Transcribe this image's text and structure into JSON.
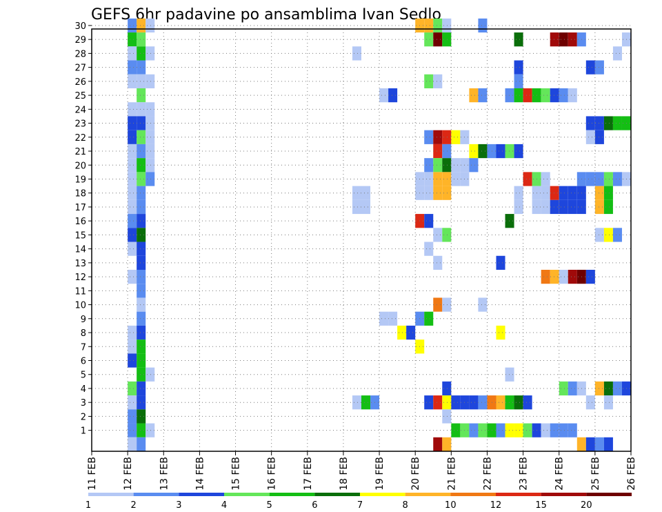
{
  "chart_data": {
    "type": "heatmap",
    "title": "GEFS 6hr padavine po ansamblima Ivan Sedlo",
    "x_tick_labels": [
      "11 FEB",
      "12 FEB",
      "13 FEB",
      "14 FEB",
      "15 FEB",
      "16 FEB",
      "17 FEB",
      "18 FEB",
      "19 FEB",
      "20 FEB",
      "21 FEB",
      "22 FEB",
      "23 FEB",
      "24 FEB",
      "25 FEB",
      "26 FEB"
    ],
    "y_tick_labels": [
      "1",
      "2",
      "3",
      "4",
      "5",
      "6",
      "7",
      "8",
      "9",
      "10",
      "11",
      "12",
      "13",
      "14",
      "15",
      "16",
      "17",
      "18",
      "19",
      "20",
      "21",
      "22",
      "23",
      "24",
      "25",
      "26",
      "27",
      "28",
      "29",
      "30"
    ],
    "xlim_days": [
      11,
      26
    ],
    "ylim_member": [
      0,
      30
    ],
    "grid": true,
    "palette": [
      {
        "level": 1,
        "color": "#b4c8f5"
      },
      {
        "level": 2,
        "color": "#5a8cf0"
      },
      {
        "level": 3,
        "color": "#1e46dc"
      },
      {
        "level": 4,
        "color": "#64e65a"
      },
      {
        "level": 5,
        "color": "#14be14"
      },
      {
        "level": 6,
        "color": "#0a6e0a"
      },
      {
        "level": 7,
        "color": "#ffff00"
      },
      {
        "level": 8,
        "color": "#ffb428"
      },
      {
        "level": 9,
        "color": "#f07814"
      },
      {
        "level": 10,
        "color": "#dc2814"
      },
      {
        "level": 11,
        "color": "#a00a0a"
      },
      {
        "level": 12,
        "color": "#6e0000"
      }
    ],
    "colorbar_labels": [
      {
        "text": "1",
        "level": 0
      },
      {
        "text": "2",
        "level": 1
      },
      {
        "text": "3",
        "level": 2
      },
      {
        "text": "4",
        "level": 3
      },
      {
        "text": "5",
        "level": 4
      },
      {
        "text": "6",
        "level": 5
      },
      {
        "text": "7",
        "level": 6
      },
      {
        "text": "8",
        "level": 7
      },
      {
        "text": "10",
        "level": 8
      },
      {
        "text": "12",
        "level": 9
      },
      {
        "text": "15",
        "level": 10
      },
      {
        "text": "20",
        "level": 11
      }
    ],
    "cell_width_days": 0.25,
    "cells": [
      [
        30,
        12.0,
        2
      ],
      [
        30,
        12.25,
        8
      ],
      [
        30,
        12.5,
        1
      ],
      [
        30,
        20.0,
        8
      ],
      [
        30,
        20.25,
        8
      ],
      [
        30,
        20.5,
        4
      ],
      [
        30,
        20.75,
        1
      ],
      [
        30,
        21.75,
        2
      ],
      [
        29,
        12.0,
        5
      ],
      [
        29,
        12.25,
        4
      ],
      [
        29,
        20.25,
        4
      ],
      [
        29,
        20.5,
        12
      ],
      [
        29,
        20.75,
        5
      ],
      [
        29,
        22.75,
        6
      ],
      [
        29,
        23.75,
        11
      ],
      [
        29,
        24.0,
        12
      ],
      [
        29,
        24.25,
        11
      ],
      [
        29,
        24.5,
        2
      ],
      [
        29,
        25.75,
        1
      ],
      [
        28,
        12.0,
        1
      ],
      [
        28,
        12.25,
        5
      ],
      [
        28,
        12.5,
        1
      ],
      [
        28,
        18.25,
        1
      ],
      [
        28,
        25.5,
        1
      ],
      [
        27,
        12.0,
        2
      ],
      [
        27,
        12.25,
        2
      ],
      [
        27,
        22.75,
        3
      ],
      [
        27,
        24.75,
        3
      ],
      [
        27,
        25.0,
        2
      ],
      [
        26,
        12.0,
        1
      ],
      [
        26,
        12.25,
        1
      ],
      [
        26,
        12.5,
        1
      ],
      [
        26,
        20.25,
        4
      ],
      [
        26,
        20.5,
        1
      ],
      [
        26,
        22.75,
        2
      ],
      [
        25,
        12.25,
        4
      ],
      [
        25,
        19.0,
        1
      ],
      [
        25,
        19.25,
        3
      ],
      [
        25,
        21.5,
        8
      ],
      [
        25,
        21.75,
        2
      ],
      [
        25,
        22.5,
        2
      ],
      [
        25,
        22.75,
        5
      ],
      [
        25,
        23.0,
        10
      ],
      [
        25,
        23.25,
        5
      ],
      [
        25,
        23.5,
        4
      ],
      [
        25,
        23.75,
        3
      ],
      [
        25,
        24.0,
        2
      ],
      [
        25,
        24.25,
        1
      ],
      [
        24,
        12.0,
        1
      ],
      [
        24,
        12.25,
        1
      ],
      [
        24,
        12.5,
        1
      ],
      [
        24,
        26.0,
        3
      ],
      [
        23,
        12.0,
        3
      ],
      [
        23,
        12.25,
        3
      ],
      [
        23,
        12.5,
        1
      ],
      [
        23,
        24.75,
        3
      ],
      [
        23,
        25.0,
        3
      ],
      [
        23,
        25.25,
        6
      ],
      [
        23,
        25.5,
        5
      ],
      [
        23,
        25.75,
        5
      ],
      [
        22,
        12.0,
        3
      ],
      [
        22,
        12.25,
        4
      ],
      [
        22,
        12.5,
        1
      ],
      [
        22,
        20.25,
        2
      ],
      [
        22,
        20.5,
        11
      ],
      [
        22,
        20.75,
        10
      ],
      [
        22,
        21.0,
        7
      ],
      [
        22,
        21.25,
        1
      ],
      [
        22,
        24.75,
        1
      ],
      [
        22,
        25.0,
        3
      ],
      [
        21,
        12.0,
        1
      ],
      [
        21,
        12.25,
        2
      ],
      [
        21,
        12.5,
        1
      ],
      [
        21,
        20.5,
        10
      ],
      [
        21,
        20.75,
        2
      ],
      [
        21,
        21.5,
        7
      ],
      [
        21,
        21.75,
        6
      ],
      [
        21,
        22.0,
        2
      ],
      [
        21,
        22.25,
        3
      ],
      [
        21,
        22.5,
        4
      ],
      [
        21,
        22.75,
        3
      ],
      [
        20,
        12.0,
        1
      ],
      [
        20,
        12.25,
        5
      ],
      [
        20,
        12.5,
        1
      ],
      [
        20,
        20.25,
        2
      ],
      [
        20,
        20.5,
        4
      ],
      [
        20,
        20.75,
        6
      ],
      [
        20,
        21.0,
        1
      ],
      [
        20,
        21.25,
        1
      ],
      [
        20,
        21.5,
        2
      ],
      [
        19,
        12.0,
        1
      ],
      [
        19,
        12.25,
        4
      ],
      [
        19,
        12.5,
        2
      ],
      [
        19,
        20.0,
        1
      ],
      [
        19,
        20.25,
        1
      ],
      [
        19,
        20.5,
        8
      ],
      [
        19,
        20.75,
        8
      ],
      [
        19,
        21.0,
        1
      ],
      [
        19,
        21.25,
        1
      ],
      [
        19,
        23.0,
        10
      ],
      [
        19,
        23.25,
        4
      ],
      [
        19,
        23.5,
        1
      ],
      [
        19,
        24.5,
        2
      ],
      [
        19,
        24.75,
        2
      ],
      [
        19,
        25.0,
        2
      ],
      [
        19,
        25.25,
        4
      ],
      [
        19,
        25.5,
        2
      ],
      [
        19,
        25.75,
        1
      ],
      [
        18,
        12.0,
        1
      ],
      [
        18,
        12.25,
        2
      ],
      [
        18,
        18.25,
        1
      ],
      [
        18,
        18.5,
        1
      ],
      [
        18,
        20.0,
        1
      ],
      [
        18,
        20.25,
        1
      ],
      [
        18,
        20.5,
        8
      ],
      [
        18,
        20.75,
        8
      ],
      [
        18,
        22.75,
        1
      ],
      [
        18,
        23.25,
        1
      ],
      [
        18,
        23.5,
        1
      ],
      [
        18,
        23.75,
        10
      ],
      [
        18,
        24.0,
        3
      ],
      [
        18,
        24.25,
        3
      ],
      [
        18,
        24.5,
        3
      ],
      [
        18,
        25.0,
        8
      ],
      [
        18,
        25.25,
        5
      ],
      [
        17,
        12.0,
        1
      ],
      [
        17,
        12.25,
        2
      ],
      [
        17,
        18.25,
        1
      ],
      [
        17,
        18.5,
        1
      ],
      [
        17,
        22.75,
        1
      ],
      [
        17,
        23.25,
        1
      ],
      [
        17,
        23.5,
        1
      ],
      [
        17,
        23.75,
        3
      ],
      [
        17,
        24.0,
        3
      ],
      [
        17,
        24.25,
        3
      ],
      [
        17,
        24.5,
        3
      ],
      [
        17,
        25.0,
        8
      ],
      [
        17,
        25.25,
        5
      ],
      [
        16,
        12.0,
        2
      ],
      [
        16,
        12.25,
        3
      ],
      [
        16,
        20.0,
        10
      ],
      [
        16,
        20.25,
        3
      ],
      [
        16,
        22.5,
        6
      ],
      [
        15,
        12.0,
        3
      ],
      [
        15,
        12.25,
        6
      ],
      [
        15,
        20.5,
        1
      ],
      [
        15,
        20.75,
        4
      ],
      [
        15,
        25.0,
        1
      ],
      [
        15,
        25.25,
        7
      ],
      [
        15,
        25.5,
        2
      ],
      [
        14,
        12.0,
        1
      ],
      [
        14,
        12.25,
        3
      ],
      [
        14,
        20.25,
        1
      ],
      [
        13,
        12.25,
        3
      ],
      [
        13,
        20.5,
        1
      ],
      [
        13,
        22.25,
        3
      ],
      [
        12,
        12.0,
        1
      ],
      [
        12,
        12.25,
        2
      ],
      [
        12,
        23.5,
        9
      ],
      [
        12,
        23.75,
        8
      ],
      [
        12,
        24.0,
        1
      ],
      [
        12,
        24.25,
        11
      ],
      [
        12,
        24.5,
        12
      ],
      [
        12,
        24.75,
        3
      ],
      [
        12,
        26.0,
        3
      ],
      [
        11,
        12.25,
        2
      ],
      [
        10,
        12.25,
        1
      ],
      [
        10,
        20.5,
        9
      ],
      [
        10,
        20.75,
        1
      ],
      [
        10,
        21.75,
        1
      ],
      [
        9,
        12.25,
        2
      ],
      [
        9,
        19.0,
        1
      ],
      [
        9,
        19.25,
        1
      ],
      [
        9,
        20.0,
        2
      ],
      [
        9,
        20.25,
        5
      ],
      [
        8,
        12.0,
        1
      ],
      [
        8,
        12.25,
        3
      ],
      [
        8,
        19.5,
        7
      ],
      [
        8,
        19.75,
        3
      ],
      [
        8,
        22.25,
        7
      ],
      [
        7,
        12.0,
        1
      ],
      [
        7,
        12.25,
        5
      ],
      [
        7,
        20.0,
        7
      ],
      [
        6,
        12.0,
        3
      ],
      [
        6,
        12.25,
        5
      ],
      [
        5,
        12.25,
        5
      ],
      [
        5,
        12.5,
        1
      ],
      [
        5,
        22.5,
        1
      ],
      [
        4,
        12.0,
        4
      ],
      [
        4,
        12.25,
        3
      ],
      [
        4,
        20.75,
        3
      ],
      [
        4,
        24.0,
        4
      ],
      [
        4,
        24.25,
        2
      ],
      [
        4,
        24.5,
        1
      ],
      [
        4,
        25.0,
        8
      ],
      [
        4,
        25.25,
        6
      ],
      [
        4,
        25.5,
        2
      ],
      [
        4,
        25.75,
        3
      ],
      [
        3,
        12.0,
        1
      ],
      [
        3,
        12.25,
        3
      ],
      [
        3,
        18.25,
        1
      ],
      [
        3,
        18.5,
        5
      ],
      [
        3,
        18.75,
        2
      ],
      [
        3,
        20.25,
        3
      ],
      [
        3,
        20.5,
        10
      ],
      [
        3,
        20.75,
        7
      ],
      [
        3,
        21.0,
        3
      ],
      [
        3,
        21.25,
        3
      ],
      [
        3,
        21.5,
        3
      ],
      [
        3,
        21.75,
        2
      ],
      [
        3,
        22.0,
        9
      ],
      [
        3,
        22.25,
        8
      ],
      [
        3,
        22.5,
        5
      ],
      [
        3,
        22.75,
        6
      ],
      [
        3,
        23.0,
        3
      ],
      [
        3,
        24.75,
        1
      ],
      [
        3,
        25.25,
        1
      ],
      [
        2,
        12.0,
        2
      ],
      [
        2,
        12.25,
        6
      ],
      [
        2,
        20.75,
        1
      ],
      [
        1,
        12.0,
        2
      ],
      [
        1,
        12.25,
        5
      ],
      [
        1,
        12.5,
        1
      ],
      [
        1,
        21.0,
        5
      ],
      [
        1,
        21.25,
        4
      ],
      [
        1,
        21.5,
        2
      ],
      [
        1,
        21.75,
        4
      ],
      [
        1,
        22.0,
        5
      ],
      [
        1,
        22.25,
        2
      ],
      [
        1,
        22.5,
        7
      ],
      [
        1,
        22.75,
        7
      ],
      [
        1,
        23.0,
        4
      ],
      [
        1,
        23.25,
        3
      ],
      [
        1,
        23.5,
        1
      ],
      [
        1,
        23.75,
        2
      ],
      [
        1,
        24.0,
        2
      ],
      [
        1,
        24.25,
        2
      ],
      [
        0,
        12.0,
        1
      ],
      [
        0,
        12.25,
        2
      ],
      [
        0,
        20.5,
        11
      ],
      [
        0,
        20.75,
        8
      ],
      [
        0,
        24.5,
        8
      ],
      [
        0,
        24.75,
        3
      ],
      [
        0,
        25.0,
        2
      ],
      [
        0,
        25.25,
        3
      ]
    ]
  }
}
